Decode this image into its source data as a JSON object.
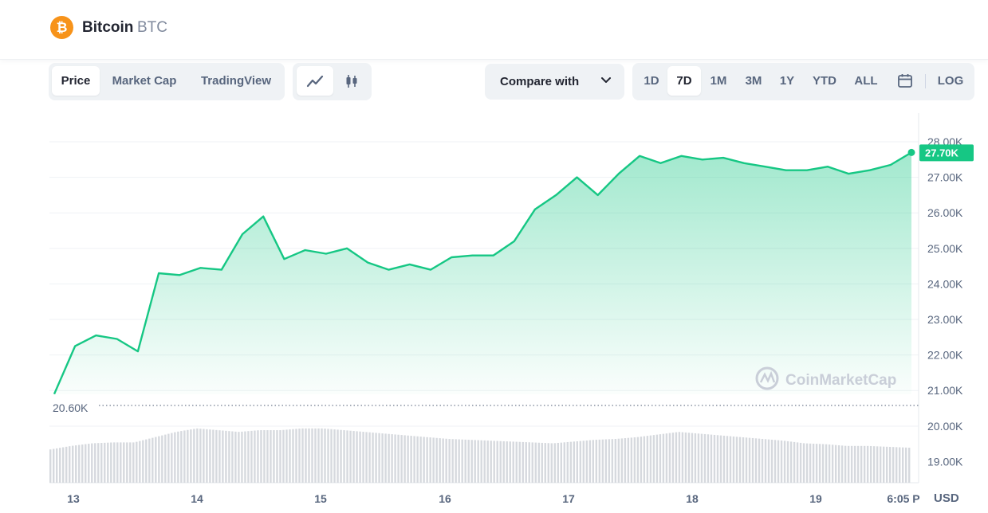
{
  "coin": {
    "name": "Bitcoin",
    "symbol": "BTC",
    "logo_glyph": "₿",
    "logo_color": "#f7931a"
  },
  "tabs": [
    "Price",
    "Market Cap",
    "TradingView"
  ],
  "active_tab": "Price",
  "chart_modes": [
    "line-chart-icon",
    "candlestick-icon"
  ],
  "compare": {
    "label": "Compare with"
  },
  "ranges": [
    "1D",
    "7D",
    "1M",
    "3M",
    "1Y",
    "YTD",
    "ALL"
  ],
  "active_range": "7D",
  "log_label": "LOG",
  "calendar_icon": "calendar-icon",
  "colors": {
    "line": "#16c784",
    "current_badge": "#16c784",
    "volume": "#d6d9de"
  },
  "chart_data": {
    "type": "area",
    "x": [
      "13 00:00",
      "13 04:00",
      "13 08:00",
      "13 12:00",
      "13 16:00",
      "13 20:00",
      "14 00:00",
      "14 04:00",
      "14 08:00",
      "14 12:00",
      "14 16:00",
      "14 20:00",
      "15 00:00",
      "15 04:00",
      "15 08:00",
      "15 12:00",
      "15 16:00",
      "15 20:00",
      "16 00:00",
      "16 04:00",
      "16 08:00",
      "16 12:00",
      "16 16:00",
      "16 20:00",
      "17 00:00",
      "17 04:00",
      "17 08:00",
      "17 12:00",
      "17 16:00",
      "17 20:00",
      "18 00:00",
      "18 04:00",
      "18 08:00",
      "18 12:00",
      "18 16:00",
      "18 20:00",
      "19 00:00",
      "19 04:00",
      "19 08:00",
      "19 12:00",
      "19 16:00",
      "19 18:05"
    ],
    "values": [
      20.9,
      22.25,
      22.55,
      22.45,
      22.1,
      24.3,
      24.25,
      24.45,
      24.4,
      25.4,
      25.9,
      24.7,
      24.95,
      24.85,
      25.0,
      24.6,
      24.4,
      24.55,
      24.4,
      24.75,
      24.8,
      24.8,
      25.2,
      26.1,
      26.5,
      27.0,
      26.5,
      27.1,
      27.6,
      27.4,
      27.6,
      27.5,
      27.55,
      27.4,
      27.3,
      27.2,
      27.2,
      27.3,
      27.1,
      27.2,
      27.35,
      27.7
    ],
    "volume": [
      0.38,
      0.42,
      0.45,
      0.46,
      0.46,
      0.52,
      0.58,
      0.62,
      0.6,
      0.58,
      0.6,
      0.6,
      0.62,
      0.62,
      0.6,
      0.58,
      0.56,
      0.54,
      0.52,
      0.5,
      0.49,
      0.48,
      0.47,
      0.46,
      0.45,
      0.47,
      0.49,
      0.5,
      0.52,
      0.55,
      0.58,
      0.56,
      0.54,
      0.52,
      0.5,
      0.48,
      0.45,
      0.44,
      0.42,
      0.42,
      0.41,
      0.4
    ],
    "y_ticks": [
      "28.00K",
      "27.00K",
      "26.00K",
      "25.00K",
      "24.00K",
      "23.00K",
      "22.00K",
      "21.00K",
      "20.00K",
      "19.00K"
    ],
    "ylim": [
      18.5,
      28.3
    ],
    "x_ticks": [
      "13",
      "14",
      "15",
      "16",
      "17",
      "18",
      "19",
      "6:05 P"
    ],
    "low_label": "20.60K",
    "current_label": "27.70K",
    "currency": "USD",
    "watermark": "CoinMarketCap",
    "grid": true
  }
}
